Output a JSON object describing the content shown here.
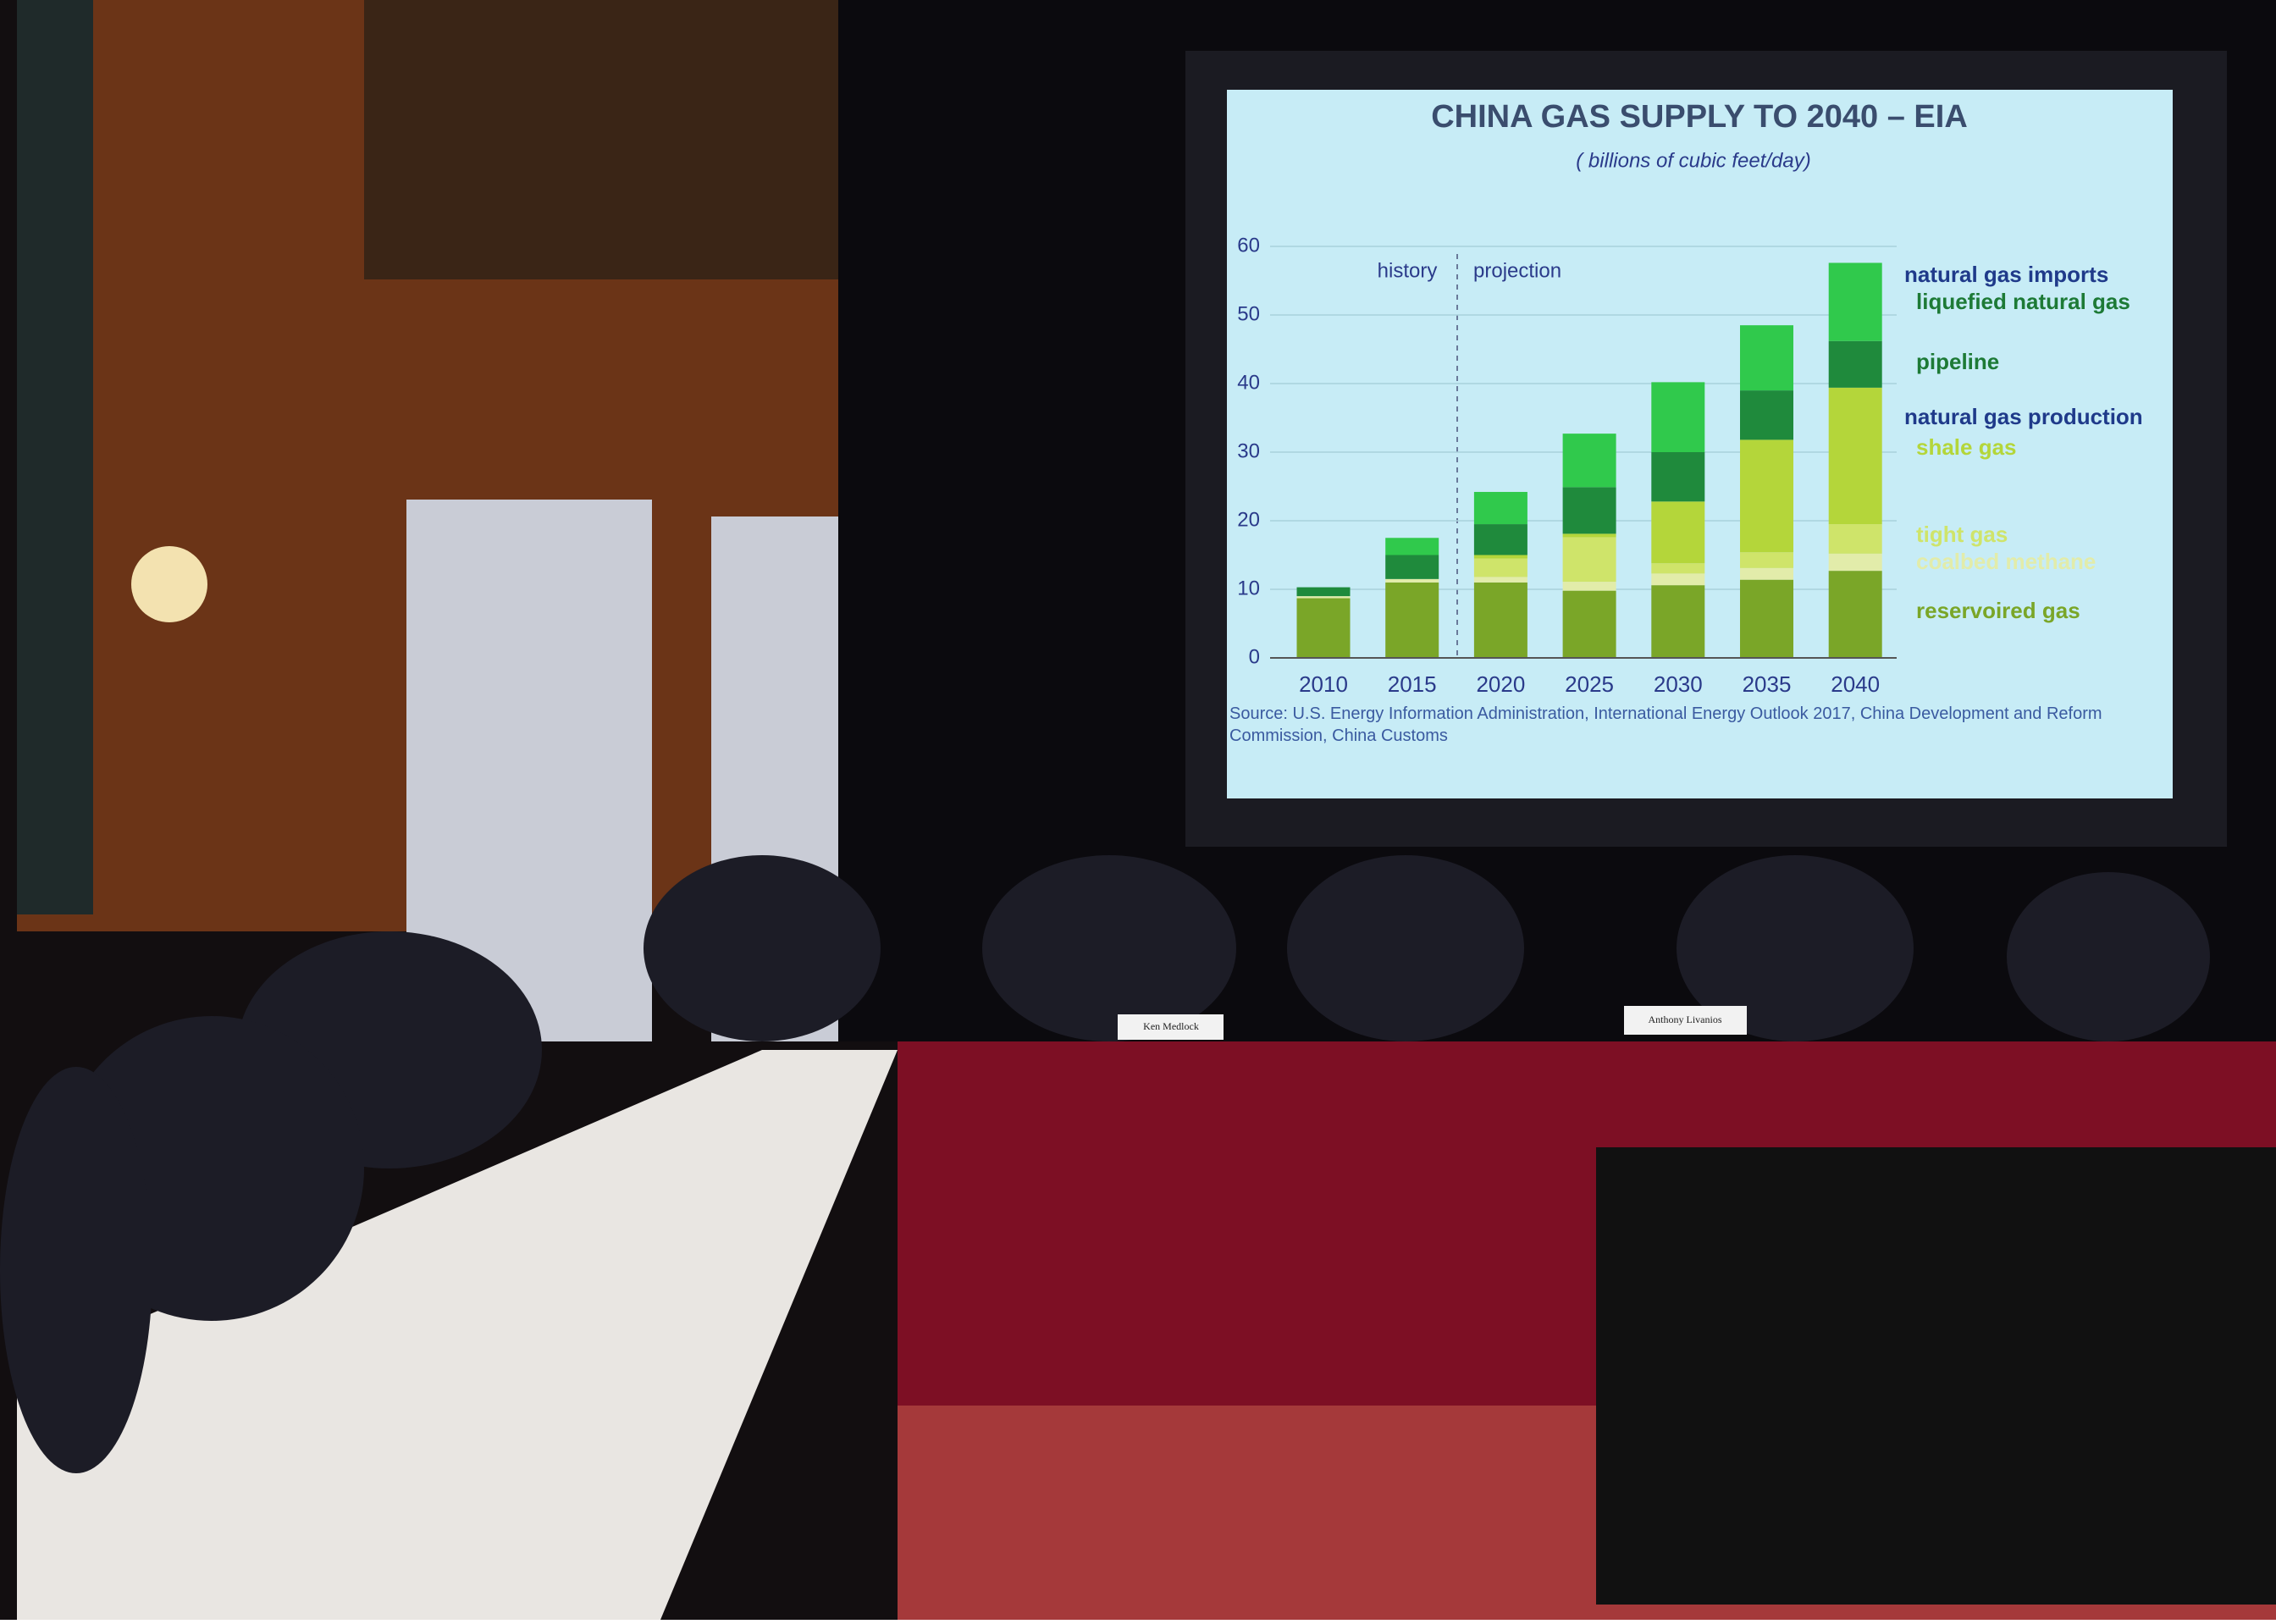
{
  "chart_data": {
    "type": "stacked-bar",
    "title": "CHINA GAS SUPPLY TO 2040 – EIA",
    "subtitle": "( billions of cubic feet/day)",
    "annotations": [
      "history",
      "projection"
    ],
    "legend_groups": [
      "natural gas imports",
      "natural gas production"
    ],
    "source": "Source: U.S. Energy Information Administration, International Energy Outlook 2017, China Development and Reform Commission, China Customs",
    "categories": [
      "2010",
      "2015",
      "2020",
      "2025",
      "2030",
      "2035",
      "2040"
    ],
    "series": [
      {
        "name": "reservoired gas",
        "color": "#7aa628",
        "values": [
          8.7,
          11,
          11,
          9.8,
          10.6,
          11.4,
          12.7
        ]
      },
      {
        "name": "coalbed methane",
        "color": "#e2ecaa",
        "values": [
          0.3,
          0.5,
          0.8,
          1.3,
          1.7,
          1.7,
          2.5
        ]
      },
      {
        "name": "tight gas",
        "color": "#cfe46a",
        "values": [
          0,
          0,
          2.7,
          6.5,
          1.5,
          2.3,
          4.3
        ]
      },
      {
        "name": "shale gas",
        "color": "#b4d63a",
        "values": [
          0,
          0,
          0.5,
          0.5,
          9,
          16.4,
          19.9
        ]
      },
      {
        "name": "pipeline",
        "color": "#1f8a3c",
        "values": [
          1.3,
          3.5,
          4.5,
          6.8,
          7.2,
          7.2,
          6.8
        ]
      },
      {
        "name": "liquefied natural gas",
        "color": "#30c94c",
        "values": [
          0,
          2.5,
          4.7,
          7.8,
          10.2,
          9.5,
          11.4
        ]
      }
    ],
    "ylim": [
      0,
      60
    ],
    "yticks": [
      0,
      10,
      20,
      30,
      40,
      50,
      60
    ],
    "grid": true
  },
  "nameplates": [
    "Ken Medlock",
    "Anthony Livanios"
  ]
}
